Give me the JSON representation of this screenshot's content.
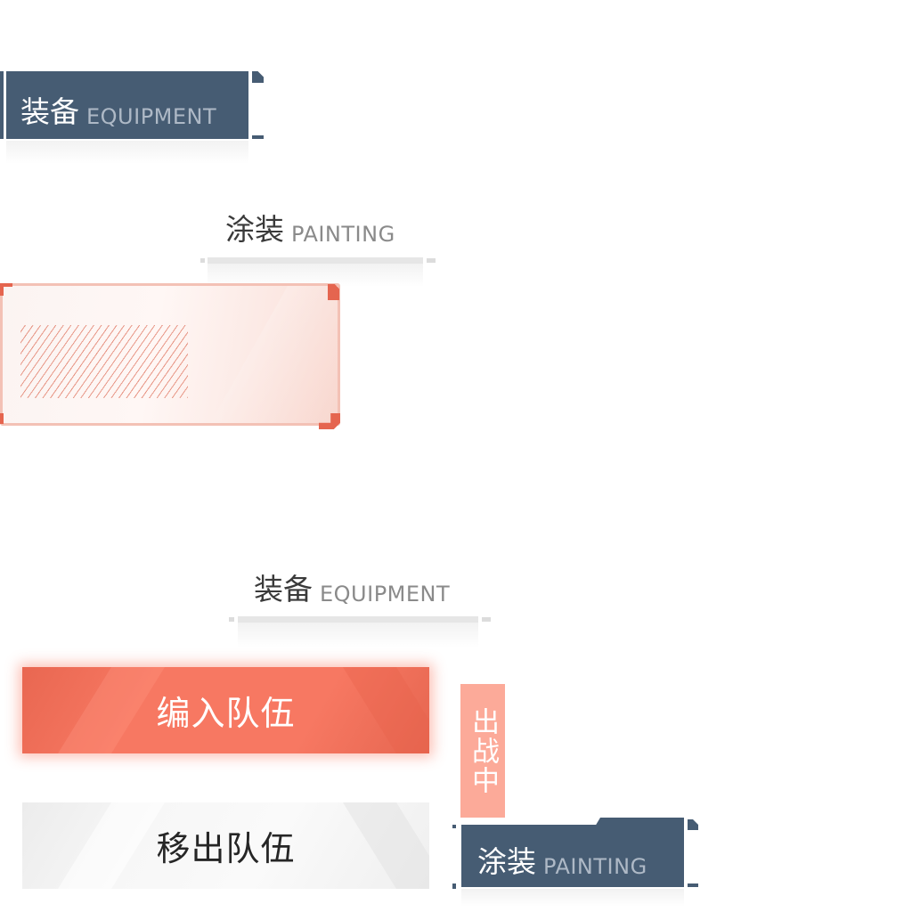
{
  "tabs": {
    "equipment_active": {
      "label_cn": "装备",
      "label_en": "EQUIPMENT",
      "state": "selected"
    },
    "painting_inactive": {
      "label_cn": "涂装",
      "label_en": "PAINTING",
      "state": "unselected"
    },
    "equipment_inactive": {
      "label_cn": "装备",
      "label_en": "EQUIPMENT",
      "state": "unselected"
    },
    "painting_active": {
      "label_cn": "涂装",
      "label_en": "PAINTING",
      "state": "selected"
    }
  },
  "buttons": {
    "join_team": "编入队伍",
    "leave_team": "移出队伍"
  },
  "badge": {
    "text": "出战中"
  },
  "colors": {
    "slate": "#465c73",
    "coral": "#f77862",
    "coral_light": "#fcaa99",
    "frame_border": "#f3c1b5",
    "frame_corner": "#e5654f",
    "neutral": "#f3f3f3"
  },
  "icons": {
    "panel_pattern": "diagonal-hatch"
  }
}
